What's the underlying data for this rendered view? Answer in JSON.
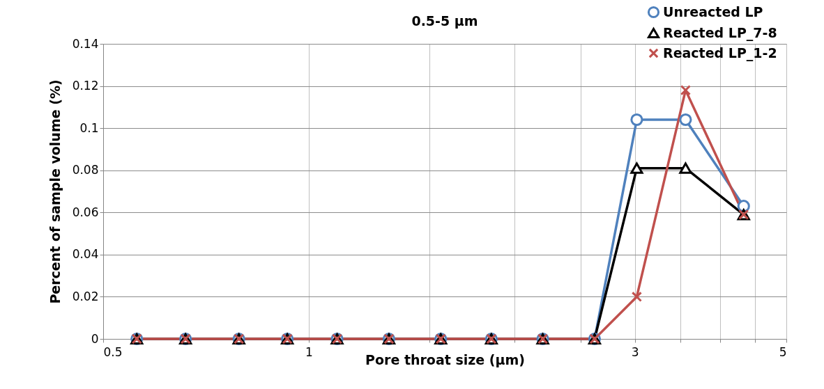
{
  "chart_data": {
    "type": "line",
    "title": "0.5-5 µm",
    "xlabel": "Pore throat size (µm)",
    "ylabel": "Percent of  sample volume (%)",
    "log": "x",
    "xlim": [
      0.5,
      5
    ],
    "ylim": [
      0,
      0.14
    ],
    "xticks": [
      0.5,
      1,
      {
        "value": 1.5,
        "label": null
      },
      {
        "value": 2,
        "label": null
      },
      {
        "value": 2.5,
        "label": null
      },
      3,
      {
        "value": 3.5,
        "label": null
      },
      {
        "value": 4,
        "label": null
      },
      {
        "value": 4.5,
        "label": null
      },
      5
    ],
    "yticks": [
      0,
      0.02,
      0.04,
      0.06,
      0.08,
      0.1,
      0.12,
      0.14
    ],
    "grid": true,
    "legend": "top right",
    "line_style": "solid",
    "x": [
      0.56,
      0.66,
      0.79,
      0.93,
      1.1,
      1.31,
      1.56,
      1.85,
      2.2,
      2.62,
      3.02,
      3.56,
      4.33
    ],
    "series": [
      {
        "name": "Unreacted LP",
        "color": "#4f81bd",
        "marker": "circle",
        "values": [
          0,
          0,
          0,
          0,
          0,
          0,
          0,
          0,
          0,
          0,
          0.104,
          0.104,
          0.063
        ]
      },
      {
        "name": "Reacted LP_7-8",
        "color": "#000000",
        "marker": "triangle",
        "values": [
          0,
          0,
          0,
          0,
          0,
          0,
          0,
          0,
          0,
          0,
          0.081,
          0.081,
          0.059
        ]
      },
      {
        "name": "Reacted LP_1-2",
        "color": "#c0504d",
        "marker": "cross",
        "values": [
          0,
          0,
          0,
          0,
          0,
          0,
          0,
          0,
          0,
          0,
          0.02,
          0.118,
          0.059
        ]
      }
    ]
  }
}
